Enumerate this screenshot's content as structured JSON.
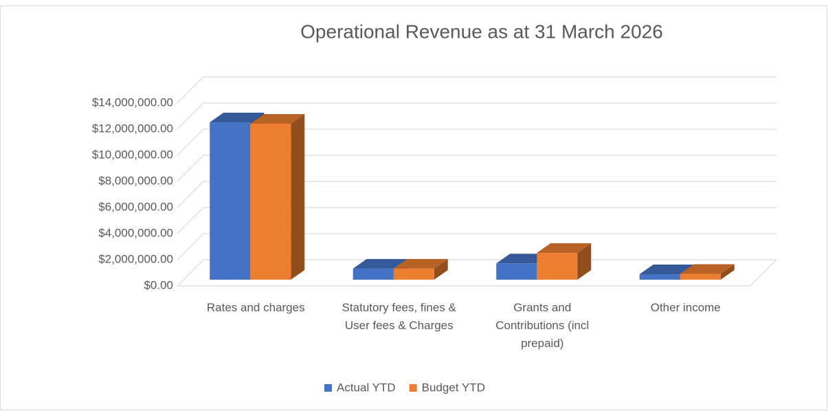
{
  "chart_data": {
    "type": "bar3d",
    "title": "Operational Revenue as at 31 March 2026",
    "categories": [
      "Rates and charges",
      "Statutory fees, fines & User fees & Charges",
      "Grants and Contributions (incl prepaid)",
      "Other income"
    ],
    "series": [
      {
        "name": "Actual YTD",
        "color": "#4472c4",
        "values": [
          12050000,
          850000,
          1250000,
          420000
        ]
      },
      {
        "name": "Budget YTD",
        "color": "#ed7d31",
        "values": [
          11950000,
          850000,
          2050000,
          450000
        ]
      }
    ],
    "ylim": [
      0,
      14000000
    ],
    "yticks": [
      {
        "value": 0,
        "label": "$0.00"
      },
      {
        "value": 2000000,
        "label": "$2,000,000.00"
      },
      {
        "value": 4000000,
        "label": "$4,000,000.00"
      },
      {
        "value": 6000000,
        "label": "$6,000,000.00"
      },
      {
        "value": 8000000,
        "label": "$8,000,000.00"
      },
      {
        "value": 10000000,
        "label": "$10,000,000.00"
      },
      {
        "value": 12000000,
        "label": "$12,000,000.00"
      },
      {
        "value": 14000000,
        "label": "$14,000,000.00"
      }
    ],
    "grid": true,
    "legend": "bottom"
  }
}
